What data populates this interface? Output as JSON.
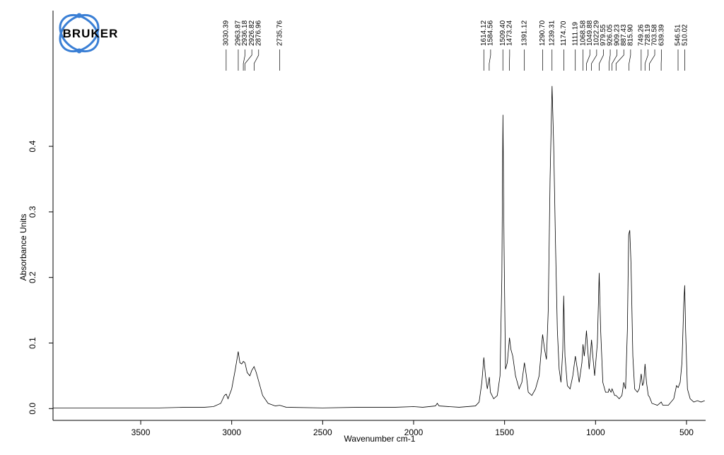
{
  "chart_data": {
    "type": "line",
    "logo_text": "BRUKER",
    "xlabel": "Wavenumber cm-1",
    "ylabel": "Absorbance Units",
    "xlim": [
      3982,
      395
    ],
    "ylim": [
      -0.018,
      0.607
    ],
    "xticks": [
      3500,
      3000,
      2500,
      2000,
      1500,
      1000,
      500
    ],
    "yticks": [
      {
        "value": 0,
        "label": "0.0"
      },
      0.1,
      0.2,
      0.3,
      0.4
    ],
    "peak_labels": [
      3030.39,
      2963.87,
      2936.18,
      2926.82,
      2876.96,
      2735.76,
      1614.12,
      1584.56,
      {
        "value": 1509.4,
        "label": "1509.40"
      },
      1473.24,
      1391.12,
      {
        "value": 1290.7,
        "label": "1290.70"
      },
      1239.31,
      {
        "value": 1174.7,
        "label": "1174.70"
      },
      1111.19,
      1068.58,
      1049.88,
      1022.29,
      979.55,
      926.05,
      909.23,
      887.43,
      {
        "value": 815.9,
        "label": "815.90"
      },
      749.26,
      728.19,
      703.58,
      639.39,
      546.51,
      510.02
    ],
    "series": [
      {
        "color": "#000000",
        "x": [
          3982,
          3800,
          3600,
          3400,
          3250,
          3150,
          3100,
          3060,
          3040,
          3030,
          3020,
          3000,
          2980,
          2964,
          2955,
          2945,
          2936,
          2927,
          2915,
          2900,
          2890,
          2877,
          2865,
          2850,
          2830,
          2800,
          2760,
          2736,
          2700,
          2500,
          2300,
          2100,
          2000,
          1950,
          1880,
          1870,
          1860,
          1750,
          1660,
          1640,
          1625,
          1614,
          1605,
          1595,
          1584,
          1578,
          1560,
          1540,
          1525,
          1515,
          1509,
          1503,
          1495,
          1485,
          1473,
          1465,
          1455,
          1440,
          1420,
          1405,
          1391,
          1380,
          1370,
          1350,
          1330,
          1310,
          1291,
          1280,
          1270,
          1260,
          1250,
          1239,
          1230,
          1220,
          1210,
          1200,
          1190,
          1180,
          1175,
          1168,
          1155,
          1140,
          1125,
          1111,
          1100,
          1090,
          1075,
          1069,
          1062,
          1055,
          1050,
          1043,
          1035,
          1022,
          1015,
          1005,
          990,
          980,
          972,
          960,
          945,
          930,
          926,
          915,
          909,
          895,
          887,
          870,
          855,
          845,
          835,
          825,
          818,
          812,
          805,
          795,
          785,
          770,
          760,
          749,
          742,
          735,
          728,
          720,
          710,
          704,
          690,
          660,
          639,
          630,
          600,
          570,
          555,
          546,
          535,
          525,
          515,
          510,
          505,
          495,
          480,
          460,
          440,
          420,
          400
        ],
        "values": [
          0.001,
          0.001,
          0.001,
          0.001,
          0.002,
          0.002,
          0.003,
          0.008,
          0.02,
          0.022,
          0.015,
          0.03,
          0.06,
          0.087,
          0.07,
          0.068,
          0.072,
          0.07,
          0.055,
          0.05,
          0.058,
          0.064,
          0.055,
          0.04,
          0.02,
          0.008,
          0.004,
          0.005,
          0.002,
          0.001,
          0.002,
          0.002,
          0.003,
          0.002,
          0.004,
          0.008,
          0.004,
          0.002,
          0.004,
          0.01,
          0.04,
          0.078,
          0.05,
          0.03,
          0.048,
          0.025,
          0.015,
          0.02,
          0.05,
          0.2,
          0.448,
          0.25,
          0.06,
          0.07,
          0.108,
          0.09,
          0.08,
          0.05,
          0.03,
          0.04,
          0.07,
          0.05,
          0.025,
          0.02,
          0.03,
          0.05,
          0.113,
          0.09,
          0.075,
          0.15,
          0.35,
          0.492,
          0.4,
          0.25,
          0.12,
          0.06,
          0.04,
          0.09,
          0.172,
          0.08,
          0.035,
          0.03,
          0.05,
          0.08,
          0.06,
          0.04,
          0.07,
          0.098,
          0.08,
          0.1,
          0.119,
          0.09,
          0.06,
          0.105,
          0.08,
          0.05,
          0.1,
          0.207,
          0.12,
          0.04,
          0.025,
          0.025,
          0.03,
          0.025,
          0.03,
          0.02,
          0.02,
          0.015,
          0.02,
          0.04,
          0.03,
          0.12,
          0.265,
          0.272,
          0.22,
          0.08,
          0.03,
          0.025,
          0.03,
          0.053,
          0.035,
          0.04,
          0.068,
          0.04,
          0.02,
          0.018,
          0.008,
          0.005,
          0.01,
          0.005,
          0.005,
          0.015,
          0.035,
          0.032,
          0.04,
          0.07,
          0.16,
          0.188,
          0.12,
          0.03,
          0.015,
          0.01,
          0.012,
          0.01,
          0.012
        ]
      }
    ]
  }
}
